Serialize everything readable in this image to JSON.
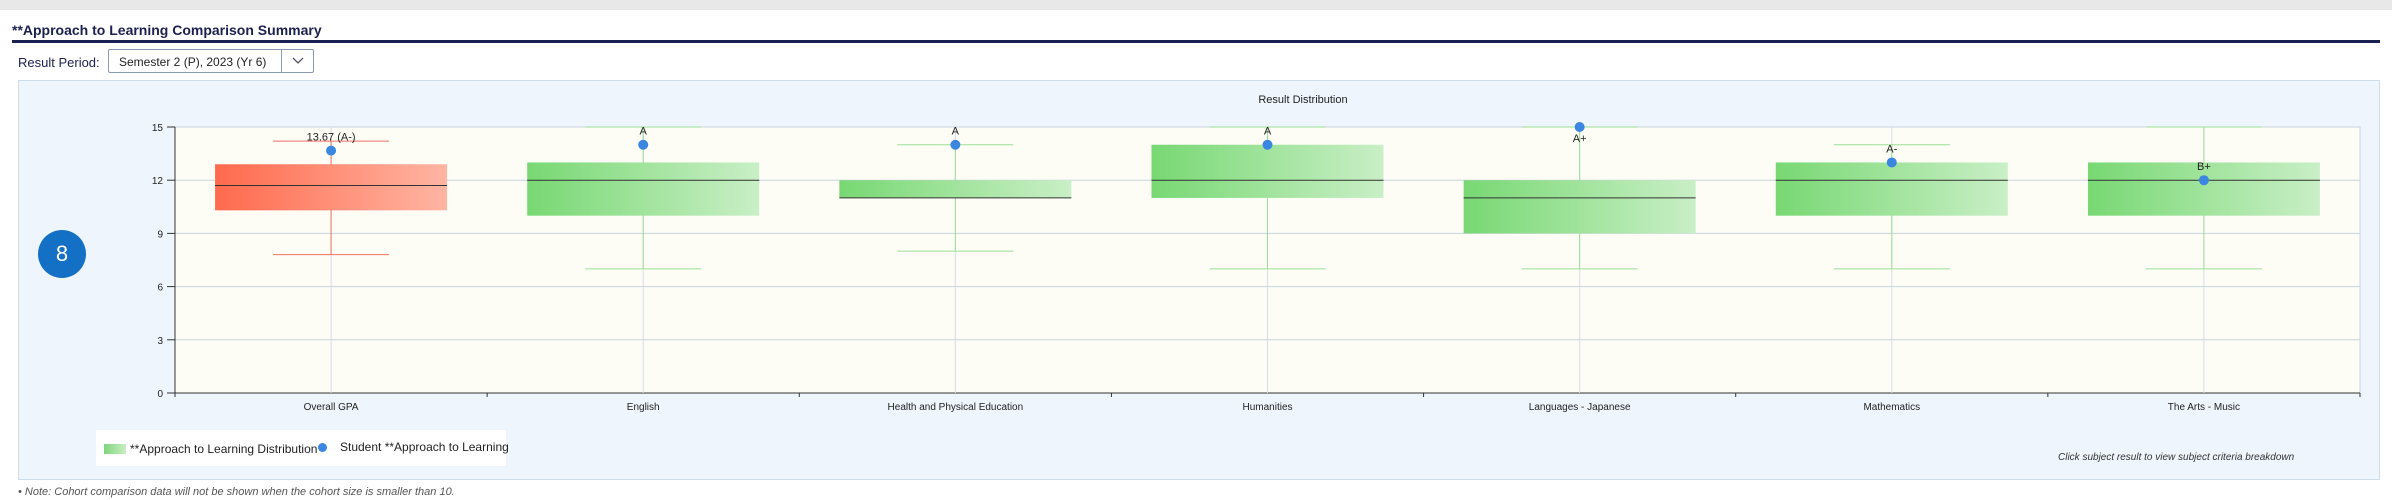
{
  "header": {
    "title": "**Approach to Learning Comparison Summary"
  },
  "filter": {
    "label": "Result Period:",
    "value": "Semester 2 (P), 2023 (Yr 6)",
    "icon": "chevron-down-icon"
  },
  "badge": {
    "value": "8"
  },
  "colors": {
    "highlight_box": "#ff6a4d",
    "highlight_box_light": "#ffb5a3",
    "box": "#78d873",
    "box_light": "#c9efc6",
    "student_dot": "#3b86e0",
    "plot_bg": "#fdfdf6"
  },
  "chart_data": {
    "type": "box",
    "title": "Result Distribution",
    "ylim": [
      0,
      15
    ],
    "yticks": [
      0,
      3,
      6,
      9,
      12,
      15
    ],
    "grid": true,
    "categories": [
      "Overall GPA",
      "English",
      "Health and Physical Education",
      "Humanities",
      "Languages - Japanese",
      "Mathematics",
      "The Arts - Music"
    ],
    "series": [
      {
        "name": "**Approach to Learning Distribution",
        "boxes": [
          {
            "min": 7.8,
            "q1": 10.3,
            "median": 11.7,
            "q3": 12.9,
            "max": 14.2
          },
          {
            "min": 7,
            "q1": 10,
            "median": 12,
            "q3": 13,
            "max": 15
          },
          {
            "min": 8,
            "q1": 11,
            "median": 11,
            "q3": 12,
            "max": 14
          },
          {
            "min": 7,
            "q1": 11,
            "median": 12,
            "q3": 14,
            "max": 15
          },
          {
            "min": 7,
            "q1": 9,
            "median": 11,
            "q3": 12,
            "max": 15
          },
          {
            "min": 7,
            "q1": 10,
            "median": 12,
            "q3": 13,
            "max": 14
          },
          {
            "min": 7,
            "q1": 10,
            "median": 12,
            "q3": 13,
            "max": 15
          }
        ]
      },
      {
        "name": "Student **Approach to Learning",
        "values": [
          13.67,
          14,
          14,
          14,
          15,
          13,
          12
        ],
        "labels": [
          "13.67 (A-)",
          "A",
          "A",
          "A",
          "A+",
          "A-",
          "B+"
        ]
      }
    ],
    "legend": "bottom-left",
    "annotation": "Click subject result to view subject criteria breakdown"
  },
  "footnote": "• Note: Cohort comparison data will not be shown when the cohort size is smaller than 10."
}
